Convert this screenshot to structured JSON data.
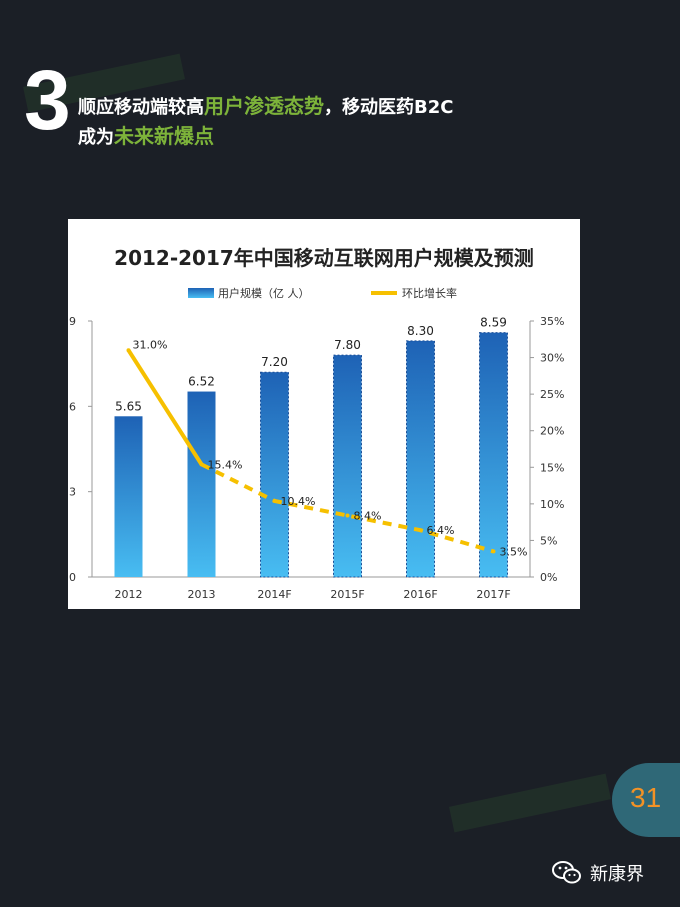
{
  "headline": {
    "number": "3",
    "line1_prefix": "顺应移动端较高",
    "line1_highlight": "用户渗透态势",
    "line1_suffix": "，移动医药B2C",
    "line2_prefix": "成为",
    "line2_highlight": "未来新爆点"
  },
  "page_number": "31",
  "brand": {
    "name": "新康界",
    "icon": "wechat-icon"
  },
  "colors": {
    "background": "#1b1f26",
    "highlight": "#7db33a",
    "bar_top": "#1e62b5",
    "bar_bottom": "#48bdf2",
    "line": "#f6c000",
    "badge": "#2f6877",
    "badge_text": "#f29226"
  },
  "chart_data": {
    "type": "bar",
    "title": "2012-2017年中国移动互联网用户规模及预测",
    "categories": [
      "2012",
      "2013",
      "2014F",
      "2015F",
      "2016F",
      "2017F"
    ],
    "series": [
      {
        "name": "用户规模（亿 人）",
        "type": "bar",
        "axis": "left",
        "values": [
          5.65,
          6.52,
          7.2,
          7.8,
          8.3,
          8.59
        ],
        "labels": [
          "5.65",
          "6.52",
          "7.20",
          "7.80",
          "8.30",
          "8.59"
        ]
      },
      {
        "name": "环比增长率",
        "type": "line",
        "axis": "right",
        "values": [
          31.0,
          15.4,
          10.4,
          8.4,
          6.4,
          3.5
        ],
        "labels": [
          "31.0%",
          "15.4%",
          "10.4%",
          "8.4%",
          "6.4%",
          "3.5%"
        ]
      }
    ],
    "y_left": {
      "min": 0,
      "max": 9,
      "ticks": [
        "0",
        "3",
        "6",
        "9"
      ]
    },
    "y_right": {
      "min": 0,
      "max": 35,
      "ticks": [
        "0%",
        "5%",
        "10%",
        "15%",
        "20%",
        "25%",
        "30%",
        "35%"
      ]
    },
    "grid": false,
    "legend_position": "top"
  }
}
